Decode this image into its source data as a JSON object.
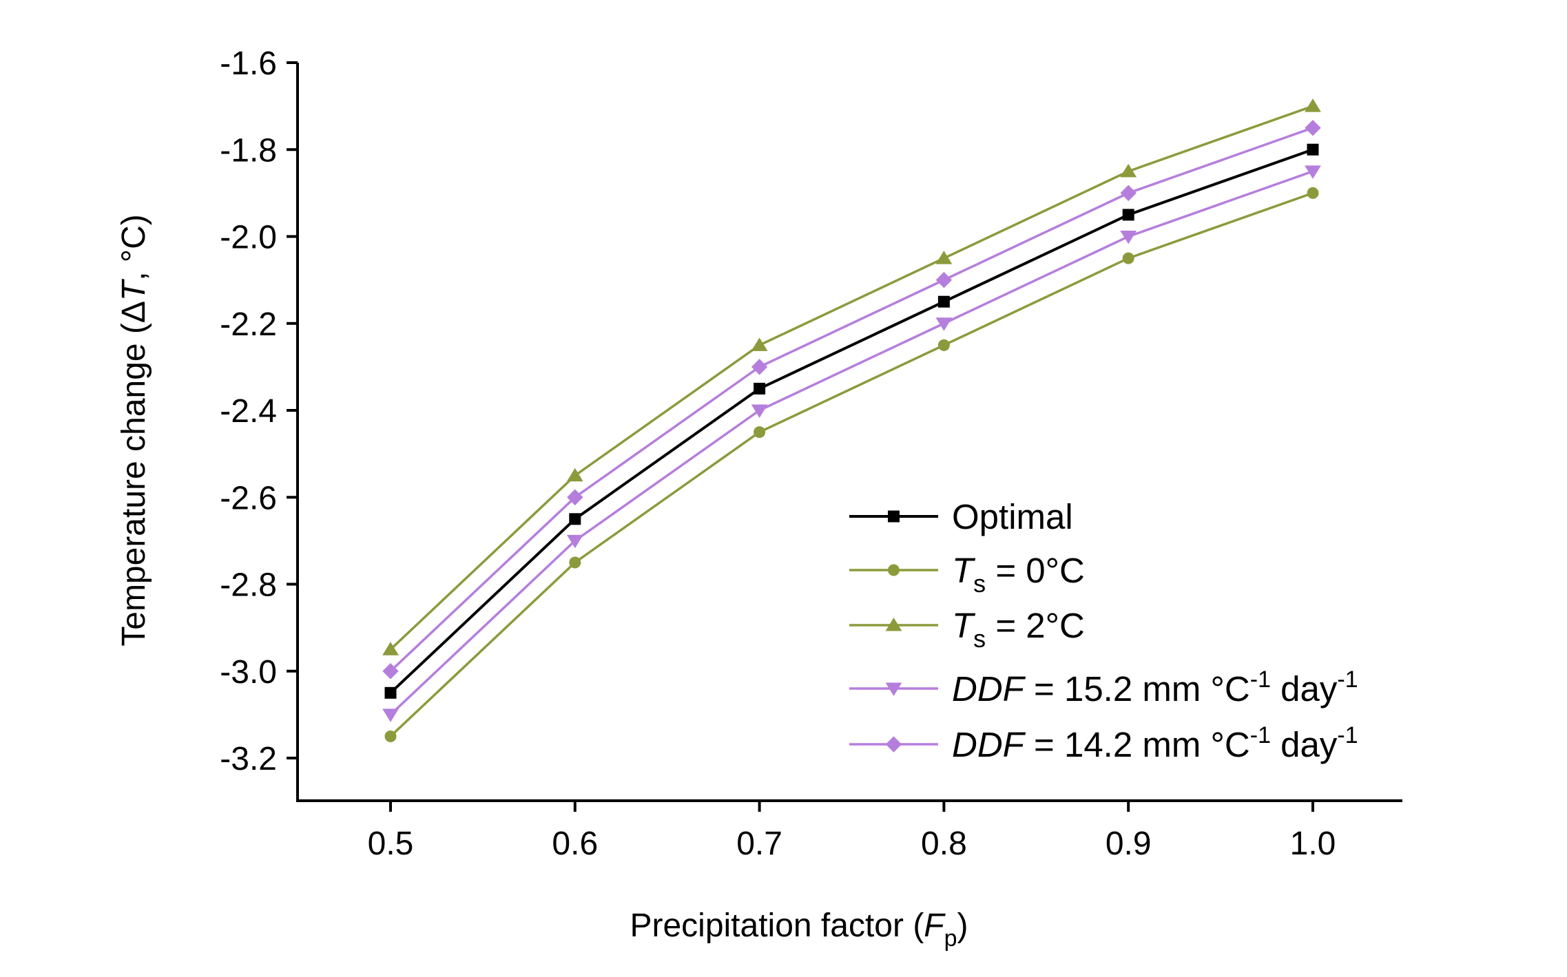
{
  "chart_data": {
    "type": "line",
    "title": "",
    "xlabel": {
      "main": "Precipitation factor (",
      "italic": "F",
      "sub": "p",
      "tail": ")"
    },
    "ylabel": {
      "main": "Temperature change (Δ",
      "italic": "T",
      "tail": ", °C)"
    },
    "x": [
      0.5,
      0.6,
      0.7,
      0.8,
      0.9,
      1.0
    ],
    "x_tick_labels": [
      "0.5",
      "0.6",
      "0.7",
      "0.8",
      "0.9",
      "1.0"
    ],
    "y_tick_labels": [
      "-1.6",
      "-1.8",
      "-2.0",
      "-2.2",
      "-2.4",
      "-2.6",
      "-2.8",
      "-3.0",
      "-3.2"
    ],
    "y_ticks": [
      -1.6,
      -1.8,
      -2.0,
      -2.2,
      -2.4,
      -2.6,
      -2.8,
      -3.0,
      -3.2
    ],
    "xlim": [
      0.45,
      1.05
    ],
    "ylim": [
      -3.3,
      -1.6
    ],
    "grid": false,
    "legend_position": "lower-right",
    "series": [
      {
        "name": "Optimal",
        "values": [
          -3.05,
          -2.65,
          -2.35,
          -2.15,
          -1.95,
          -1.8
        ],
        "color": "#000000",
        "marker": "square",
        "legend": {
          "italic": "",
          "sub": "",
          "main": "Optimal",
          "sup1": "",
          "mid": "",
          "sup2": ""
        }
      },
      {
        "name": "Ts = 0°C",
        "values": [
          -3.15,
          -2.75,
          -2.45,
          -2.25,
          -2.05,
          -1.9
        ],
        "color": "#8c9a3c",
        "marker": "circle",
        "legend": {
          "italic": "T",
          "sub": "s",
          "main": " = 0°C",
          "sup1": "",
          "mid": "",
          "sup2": ""
        }
      },
      {
        "name": "Ts = 2°C",
        "values": [
          -2.95,
          -2.55,
          -2.25,
          -2.05,
          -1.85,
          -1.7
        ],
        "color": "#8c9a3c",
        "marker": "triangle-up",
        "legend": {
          "italic": "T",
          "sub": "s",
          "main": " = 2°C",
          "sup1": "",
          "mid": "",
          "sup2": ""
        }
      },
      {
        "name": "DDF = 15.2 mm °C-1 day-1",
        "values": [
          -3.1,
          -2.7,
          -2.4,
          -2.2,
          -2.0,
          -1.85
        ],
        "color": "#b57edc",
        "marker": "triangle-down",
        "legend": {
          "italic": "DDF",
          "sub": "",
          "main": " = 15.2 mm °C",
          "sup1": "-1",
          "mid": " day",
          "sup2": "-1"
        }
      },
      {
        "name": "DDF = 14.2 mm °C-1 day-1",
        "values": [
          -3.0,
          -2.6,
          -2.3,
          -2.1,
          -1.9,
          -1.75
        ],
        "color": "#b57edc",
        "marker": "diamond",
        "legend": {
          "italic": "DDF",
          "sub": "",
          "main": " = 14.2 mm °C",
          "sup1": "-1",
          "mid": " day",
          "sup2": "-1"
        }
      }
    ]
  }
}
